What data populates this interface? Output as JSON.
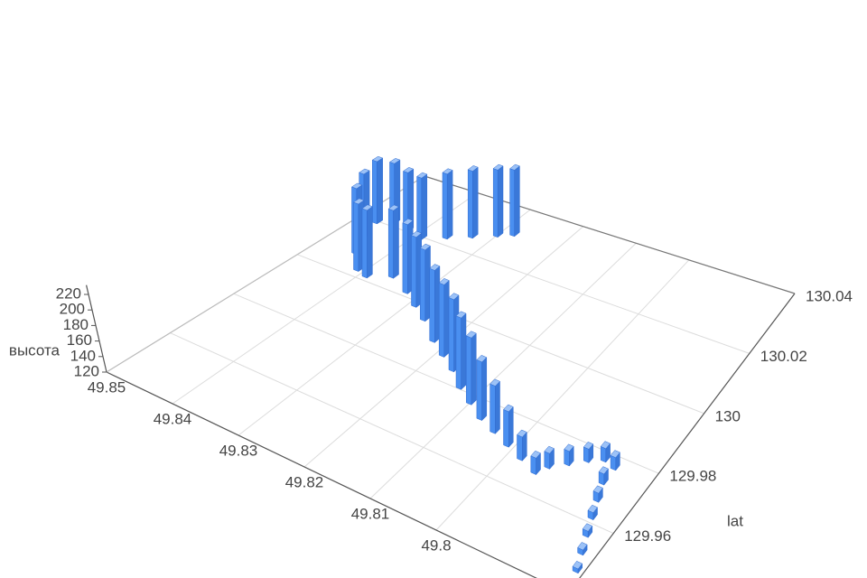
{
  "chart_data": {
    "type": "bar3d",
    "y_name": "lat",
    "z_name": "высота",
    "xlim": [
      49.78,
      49.85
    ],
    "xticks": [
      49.8,
      49.81,
      49.82,
      49.83,
      49.84,
      49.85
    ],
    "ylim": [
      129.94,
      130.04
    ],
    "yticks": [
      129.96,
      129.98,
      130,
      130.02,
      130.04
    ],
    "zlim": [
      120,
      220
    ],
    "zticks": [
      120,
      140,
      160,
      180,
      200,
      220
    ],
    "grid": true,
    "color": "#4a8ff0",
    "points": {
      "lng": [
        49.781,
        49.782,
        49.783,
        49.784,
        49.785,
        49.786,
        49.786,
        49.788,
        49.79,
        49.792,
        49.794,
        49.795,
        49.798,
        49.801,
        49.804,
        49.807,
        49.81,
        49.813,
        49.816,
        49.819,
        49.822,
        49.826,
        49.829,
        49.832,
        49.836,
        49.839,
        49.841,
        49.844,
        49.846,
        49.847,
        49.845,
        49.842,
        49.839,
        49.836,
        49.833,
        49.83,
        49.828
      ],
      "lat": [
        129.947,
        129.952,
        129.957,
        129.962,
        129.967,
        129.972,
        129.977,
        129.978,
        129.976,
        129.973,
        129.97,
        129.967,
        129.969,
        129.971,
        129.973,
        129.975,
        129.978,
        129.981,
        129.985,
        129.988,
        129.991,
        129.996,
        129.999,
        130.002,
        130.005,
        130.002,
        130.003,
        130.008,
        130.014,
        130.02,
        130.022,
        130.021,
        130.02,
        130.023,
        130.026,
        130.029,
        130.031
      ],
      "height": [
        124,
        125,
        126,
        127,
        129,
        131,
        133,
        134,
        134,
        135,
        136,
        137,
        145,
        158,
        172,
        185,
        196,
        203,
        206,
        208,
        210,
        212,
        213,
        214,
        215,
        216,
        217,
        218,
        218,
        218,
        214,
        210,
        212,
        216,
        218,
        217,
        215
      ]
    }
  }
}
